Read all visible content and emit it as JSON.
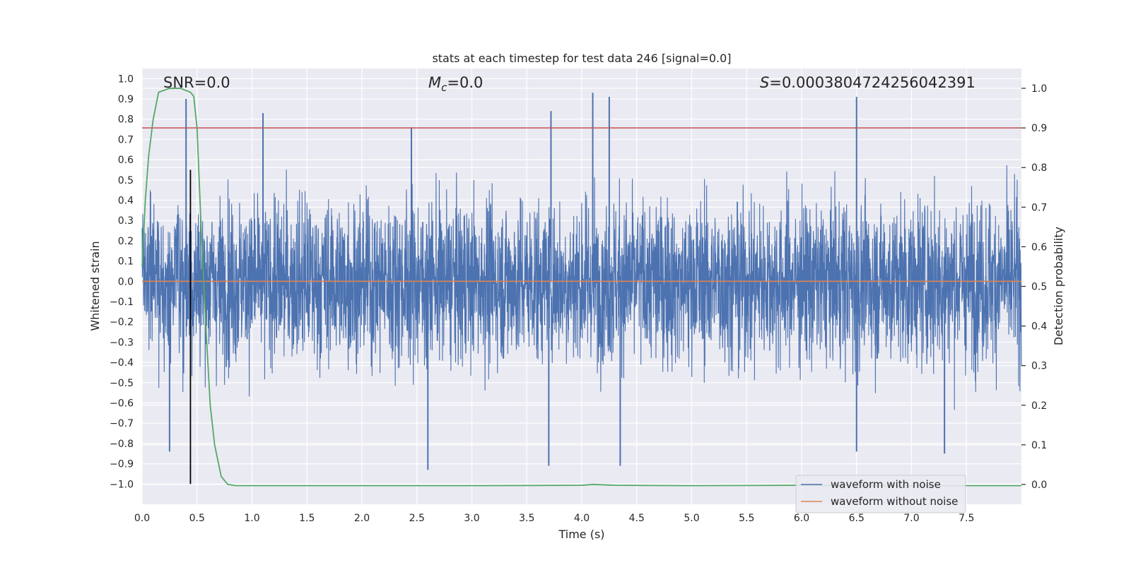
{
  "chart_data": {
    "type": "line",
    "title": "stats at each timestep for test data 246 [signal=0.0]",
    "xlabel": "Time (s)",
    "ylabel_left": "Whitened strain",
    "ylabel_right": "Detection probability",
    "xlim": [
      0.0,
      8.0
    ],
    "ylim_left": [
      -1.1,
      1.05
    ],
    "ylim_right": [
      -0.05,
      1.05
    ],
    "x_ticks": [
      0.0,
      0.5,
      1.0,
      1.5,
      2.0,
      2.5,
      3.0,
      3.5,
      4.0,
      4.5,
      5.0,
      5.5,
      6.0,
      6.5,
      7.0,
      7.5
    ],
    "x_tick_labels": [
      "0.0",
      "0.5",
      "1.0",
      "1.5",
      "2.0",
      "2.5",
      "3.0",
      "3.5",
      "4.0",
      "4.5",
      "5.0",
      "5.5",
      "6.0",
      "6.5",
      "7.0",
      "7.5"
    ],
    "y_ticks_left": [
      -1.0,
      -0.9,
      -0.8,
      -0.7,
      -0.6,
      -0.5,
      -0.4,
      -0.3,
      -0.2,
      -0.1,
      0.0,
      0.1,
      0.2,
      0.3,
      0.4,
      0.5,
      0.6,
      0.7,
      0.8,
      0.9,
      1.0
    ],
    "y_tick_labels_left": [
      "−1.0",
      "−0.9",
      "−0.8",
      "−0.7",
      "−0.6",
      "−0.5",
      "−0.4",
      "−0.3",
      "−0.2",
      "−0.1",
      "0.0",
      "0.1",
      "0.2",
      "0.3",
      "0.4",
      "0.5",
      "0.6",
      "0.7",
      "0.8",
      "0.9",
      "1.0"
    ],
    "y_ticks_right": [
      0.0,
      0.1,
      0.2,
      0.3,
      0.4,
      0.5,
      0.6,
      0.7,
      0.8,
      0.9,
      1.0
    ],
    "y_tick_labels_right": [
      "0.0",
      "0.1",
      "0.2",
      "0.3",
      "0.4",
      "0.5",
      "0.6",
      "0.7",
      "0.8",
      "0.9",
      "1.0"
    ],
    "annotations": {
      "snr": "SNR=0.0",
      "mc_symbol": "M",
      "mc_subscript": "c",
      "mc_value": "=0.0",
      "s_symbol": "S",
      "s_value": "=0.0003804724256042391"
    },
    "series": [
      {
        "name": "waveform with noise",
        "axis": "left",
        "color": "#4c72b0",
        "note": "dense noise trace spanning roughly -0.93 to 0.93",
        "peaks": [
          {
            "x": 0.4,
            "y": 0.9
          },
          {
            "x": 1.1,
            "y": 0.83
          },
          {
            "x": 2.45,
            "y": 0.76
          },
          {
            "x": 3.72,
            "y": 0.84
          },
          {
            "x": 4.1,
            "y": 0.93
          },
          {
            "x": 4.25,
            "y": 0.91
          },
          {
            "x": 6.5,
            "y": 0.91
          },
          {
            "x": 0.25,
            "y": -0.84
          },
          {
            "x": 2.6,
            "y": -0.93
          },
          {
            "x": 3.7,
            "y": -0.91
          },
          {
            "x": 4.35,
            "y": -0.91
          },
          {
            "x": 6.5,
            "y": -0.84
          },
          {
            "x": 7.3,
            "y": -0.85
          }
        ]
      },
      {
        "name": "waveform without noise",
        "axis": "left",
        "color": "#dd8452",
        "x": [
          0.0,
          8.0
        ],
        "y": [
          0.0,
          0.0
        ]
      },
      {
        "name": "detection probability",
        "axis": "right",
        "color": "#55a868",
        "x": [
          0.0,
          0.03,
          0.06,
          0.1,
          0.15,
          0.25,
          0.35,
          0.44,
          0.47,
          0.5,
          0.54,
          0.58,
          0.62,
          0.66,
          0.72,
          0.78,
          0.85,
          1.0,
          2.0,
          3.0,
          4.0,
          4.1,
          4.3,
          5.0,
          6.0,
          7.0,
          8.0
        ],
        "y": [
          0.55,
          0.72,
          0.83,
          0.92,
          0.99,
          1.0,
          1.0,
          0.99,
          0.98,
          0.9,
          0.63,
          0.4,
          0.2,
          0.1,
          0.02,
          0.0,
          -0.003,
          -0.003,
          -0.003,
          -0.003,
          -0.002,
          0.0,
          -0.002,
          -0.003,
          -0.002,
          -0.003,
          -0.003
        ]
      }
    ],
    "reference_lines": {
      "threshold": {
        "axis": "right",
        "y": 0.9,
        "color": "#c44e52"
      },
      "marker_time": {
        "axis": "x",
        "x": 0.44,
        "y_from": -1.0,
        "y_to": 0.55,
        "color": "#000000"
      }
    },
    "legend": {
      "position": "lower-right",
      "entries": [
        {
          "label": "waveform with noise",
          "color": "#4c72b0"
        },
        {
          "label": "waveform without noise",
          "color": "#dd8452"
        }
      ]
    },
    "colors": {
      "plot_bg": "#eaeaf2",
      "grid": "#ffffff",
      "text": "#262626"
    }
  }
}
